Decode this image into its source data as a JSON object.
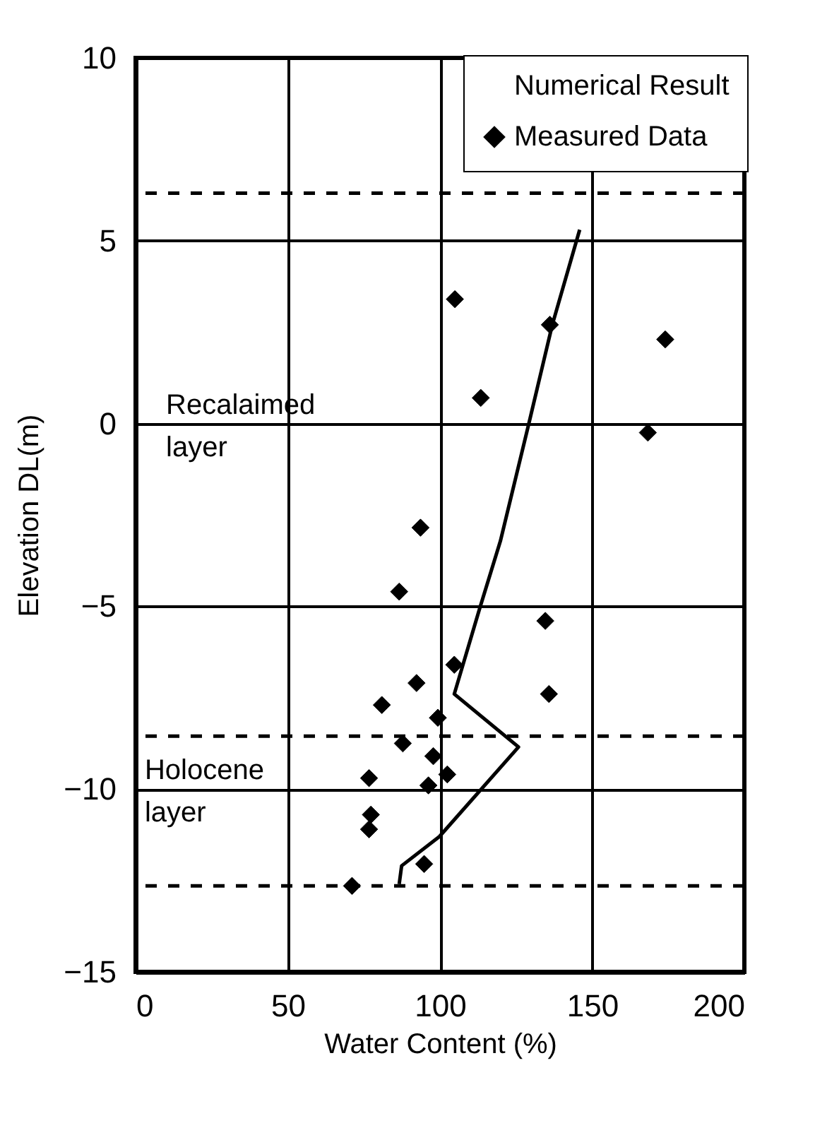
{
  "chart_data": {
    "type": "scatter",
    "xlabel": "Water Content (%)",
    "ylabel": "Elevation DL(m)",
    "xlim": [
      0,
      200
    ],
    "xticks": [
      0,
      50,
      100,
      150,
      200
    ],
    "ylim": [
      -15,
      10
    ],
    "yticks": [
      -15,
      -10,
      -5,
      0,
      5,
      10
    ],
    "grid": true,
    "legend": "top right",
    "series": [
      {
        "name": "Numerical Result",
        "type": "line",
        "color": "#000000",
        "x": [
          145.9,
          136.9,
          129.2,
          119.9,
          112.9,
          104.7,
          125.8,
          99.8,
          87.4,
          86.6
        ],
        "values": [
          5.3,
          2.7,
          0,
          -3.2,
          -5.1,
          -7.4,
          -8.85,
          -11.3,
          -12.1,
          -12.6
        ]
      },
      {
        "name": "Measured Data",
        "marker": "diamond",
        "color": "#000000",
        "x": [
          104.9,
          136.1,
          174,
          113.4,
          168.3,
          93.6,
          86.6,
          134.6,
          104.7,
          92.3,
          135.8,
          80.9,
          99.3,
          87.8,
          97.8,
          102.4,
          76.7,
          96.2,
          77.3,
          76.7,
          94.8,
          71.1
        ],
        "values": [
          3.4,
          2.7,
          2.3,
          0.7,
          -0.25,
          -2.85,
          -4.6,
          -5.4,
          -6.6,
          -7.1,
          -7.4,
          -7.7,
          -8.05,
          -8.75,
          -9.1,
          -9.6,
          -9.7,
          -9.9,
          -10.7,
          -11.1,
          -12.05,
          -12.65
        ]
      }
    ],
    "ref_lines": [
      {
        "axis": "y",
        "value": 6.3,
        "color": "#000000",
        "line_style": "dashed"
      },
      {
        "axis": "y",
        "value": -8.55,
        "color": "#000000",
        "line_style": "dashed"
      },
      {
        "axis": "y",
        "value": -12.65,
        "color": "#000000",
        "line_style": "dashed"
      }
    ],
    "annotations": [
      "Recalaimed layer",
      "Holocene layer"
    ]
  }
}
